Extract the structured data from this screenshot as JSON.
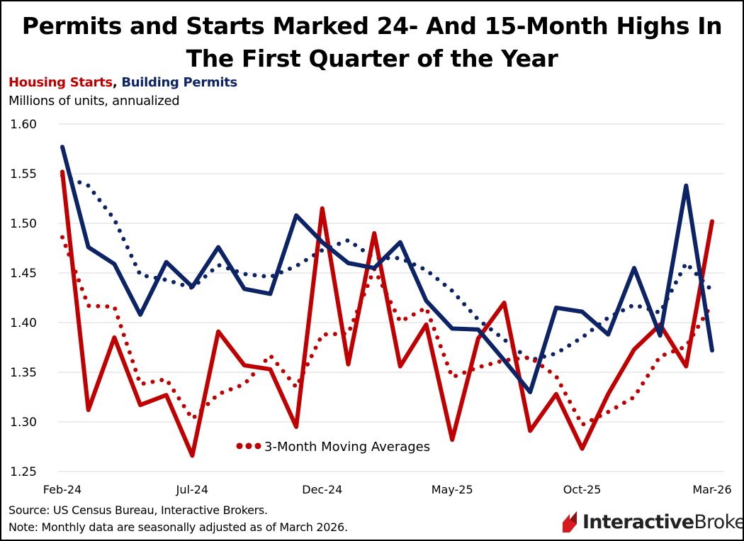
{
  "header": {
    "title_line1": "Permits and Starts Marked 24- And 15-Month Highs In",
    "title_line2": "The First Quarter of the Year",
    "series_red": "Housing Starts",
    "series_sep": ", ",
    "series_blue": "Building Permits",
    "unit": "Millions of units, annualized"
  },
  "footer": {
    "source": "Source: US Census Bureau, Interactive Brokers.",
    "note": "Note: Monthly data are seasonally adjusted as of March 2026.",
    "brand_bold": "Interactive",
    "brand_rest": "Brokers"
  },
  "colors": {
    "starts": "#C00000",
    "permits": "#0C2366",
    "grid": "#D9D9D9",
    "brand_red": "#D71920"
  },
  "chart_data": {
    "type": "line",
    "title": "Permits and Starts Marked 24- And 15-Month Highs In The First Quarter of the Year",
    "ylabel": "Millions of units, annualized",
    "ylim": [
      1.25,
      1.6
    ],
    "yticks": [
      "1.60",
      "1.55",
      "1.50",
      "1.45",
      "1.40",
      "1.35",
      "1.30",
      "1.25"
    ],
    "x": [
      "Feb-24",
      "Mar-24",
      "Apr-24",
      "May-24",
      "Jun-24",
      "Jul-24",
      "Aug-24",
      "Sep-24",
      "Oct-24",
      "Nov-24",
      "Dec-24",
      "Jan-25",
      "Feb-25",
      "Mar-25",
      "Apr-25",
      "May-25",
      "Jun-25",
      "Jul-25",
      "Aug-25",
      "Sep-25",
      "Oct-25",
      "Nov-25",
      "Dec-25",
      "Jan-26",
      "Feb-26",
      "Mar-26"
    ],
    "xtick_labels": [
      "Feb-24",
      "Jul-24",
      "Dec-24",
      "May-25",
      "Oct-25",
      "Mar-26"
    ],
    "grid": true,
    "annotation": "3-Month Moving Averages",
    "series": [
      {
        "name": "Housing Starts",
        "color": "#C00000",
        "style": "solid",
        "values": [
          1.552,
          1.312,
          1.385,
          1.317,
          1.327,
          1.266,
          1.391,
          1.357,
          1.353,
          1.295,
          1.515,
          1.358,
          1.49,
          1.356,
          1.398,
          1.282,
          1.384,
          1.42,
          1.291,
          1.328,
          1.273,
          1.328,
          1.373,
          1.398,
          1.356,
          1.502
        ]
      },
      {
        "name": "Building Permits",
        "color": "#0C2366",
        "style": "solid",
        "values": [
          1.577,
          1.476,
          1.459,
          1.408,
          1.461,
          1.436,
          1.476,
          1.434,
          1.429,
          1.508,
          1.481,
          1.46,
          1.455,
          1.481,
          1.422,
          1.394,
          1.393,
          1.362,
          1.33,
          1.415,
          1.411,
          1.388,
          1.455,
          1.387,
          1.538,
          1.372
        ]
      },
      {
        "name": "Housing Starts 3-month moving average",
        "color": "#C00000",
        "style": "dotted",
        "values": [
          1.486,
          1.417,
          1.416,
          1.338,
          1.343,
          1.303,
          1.328,
          1.338,
          1.367,
          1.335,
          1.388,
          1.389,
          1.454,
          1.401,
          1.415,
          1.345,
          1.355,
          1.362,
          1.365,
          1.346,
          1.297,
          1.31,
          1.325,
          1.366,
          1.376,
          1.419
        ]
      },
      {
        "name": "Building Permits 3-month moving average",
        "color": "#0C2366",
        "style": "dotted",
        "values": [
          1.548,
          1.538,
          1.504,
          1.448,
          1.443,
          1.435,
          1.458,
          1.449,
          1.446,
          1.457,
          1.473,
          1.483,
          1.465,
          1.465,
          1.453,
          1.432,
          1.403,
          1.383,
          1.362,
          1.369,
          1.385,
          1.405,
          1.418,
          1.41,
          1.46,
          1.432
        ]
      }
    ]
  }
}
